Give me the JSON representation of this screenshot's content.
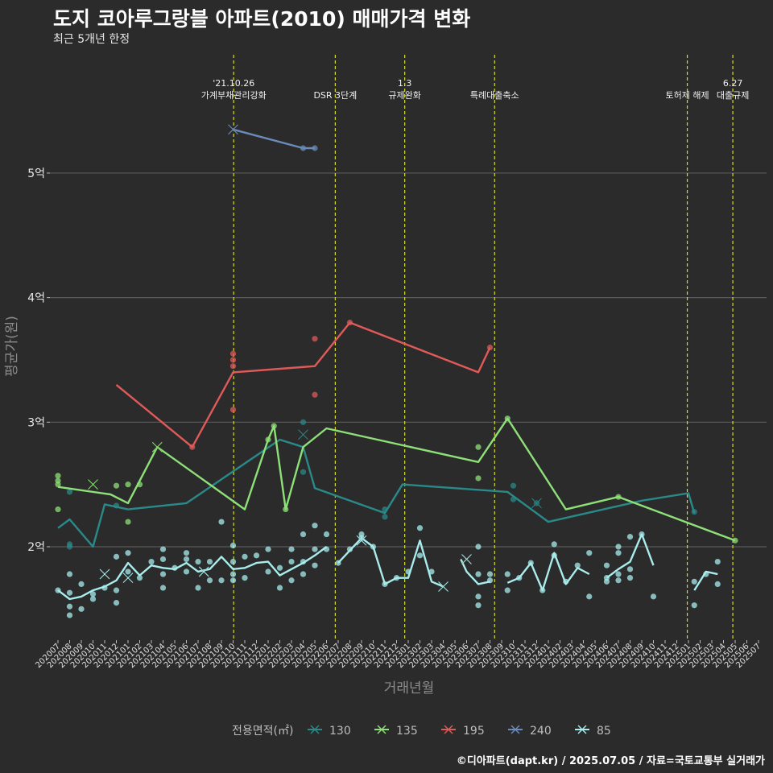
{
  "title": "도지 코아루그랑블 아파트(2010) 매매가격 변화",
  "subtitle": "최근 5개년 한정",
  "caption": "©디아파트(dapt.kr) / 2025.07.05 / 자료=국토교통부 실거래가",
  "chart_data": {
    "type": "line",
    "xlabel": "거래년월",
    "ylabel": "평균가(원)",
    "ylim": [
      1.25,
      5.95
    ],
    "y_ticks": [
      {
        "value": 2,
        "label": "2억"
      },
      {
        "value": 3,
        "label": "3억"
      },
      {
        "value": 4,
        "label": "4억"
      },
      {
        "value": 5,
        "label": "5억"
      }
    ],
    "x_labels": [
      "202007",
      "202008",
      "202009",
      "202010",
      "202011",
      "202012",
      "202101",
      "202102",
      "202103",
      "202104",
      "202105",
      "202106",
      "202107",
      "202108",
      "202109",
      "202110",
      "202111",
      "202112",
      "202201",
      "202202",
      "202203",
      "202204",
      "202205",
      "202206",
      "202207",
      "202208",
      "202209",
      "202210",
      "202211",
      "202212",
      "202301",
      "202302",
      "202303",
      "202304",
      "202305",
      "202306",
      "202307",
      "202308",
      "202309",
      "202310",
      "202311",
      "202312",
      "202401",
      "202402",
      "202403",
      "202404",
      "202405",
      "202406",
      "202407",
      "202408",
      "202409",
      "202410",
      "202411",
      "202412",
      "202501",
      "202502",
      "202503",
      "202504",
      "202505",
      "202506",
      "202507"
    ],
    "events": [
      {
        "x": 15.05,
        "lines": [
          "'21.10.26",
          "가계부채관리강화"
        ]
      },
      {
        "x": 23.75,
        "lines": [
          "DSR 3단계"
        ]
      },
      {
        "x": 29.7,
        "lines": [
          "1.3",
          "규제완화"
        ]
      },
      {
        "x": 37.4,
        "lines": [
          "특례대출축소"
        ]
      },
      {
        "x": 53.9,
        "lines": [
          "토허제 해제"
        ]
      },
      {
        "x": 57.8,
        "lines": [
          "6.27",
          "대출규제"
        ]
      }
    ],
    "legend_title": "전용면적(㎡)",
    "series": [
      {
        "name": "130",
        "color": "#2a8a8a",
        "points": [
          [
            0,
            2.15
          ],
          [
            1,
            2.22
          ],
          [
            3,
            2.0
          ],
          [
            4,
            2.34
          ],
          [
            6,
            2.3
          ],
          [
            11,
            2.35
          ],
          [
            19,
            2.86
          ],
          [
            21,
            2.8
          ],
          [
            22,
            2.47
          ],
          [
            28,
            2.27
          ],
          [
            29.5,
            2.5
          ],
          [
            38.5,
            2.44
          ],
          [
            42,
            2.2
          ],
          [
            50,
            2.37
          ],
          [
            54,
            2.43
          ],
          [
            54.5,
            2.27
          ]
        ],
        "dots": [
          [
            1,
            2.44
          ],
          [
            1,
            2.0
          ],
          [
            1,
            2.02
          ],
          [
            5,
            2.33
          ],
          [
            21,
            3.0
          ],
          [
            21,
            2.6
          ],
          [
            28,
            2.3
          ],
          [
            28,
            2.24
          ],
          [
            39,
            2.49
          ],
          [
            39,
            2.38
          ],
          [
            41,
            2.35
          ],
          [
            54.5,
            2.28
          ]
        ],
        "x_marks": [
          [
            21,
            2.9
          ],
          [
            41,
            2.35
          ]
        ]
      },
      {
        "name": "135",
        "color": "#8ee078",
        "points": [
          [
            0,
            2.48
          ],
          [
            4.5,
            2.42
          ],
          [
            6,
            2.35
          ],
          [
            8.5,
            2.8
          ],
          [
            16,
            2.3
          ],
          [
            18,
            2.86
          ],
          [
            18.5,
            2.97
          ],
          [
            19.5,
            2.3
          ],
          [
            21,
            2.8
          ],
          [
            23,
            2.95
          ],
          [
            36,
            2.68
          ],
          [
            38.5,
            3.03
          ],
          [
            43.5,
            2.3
          ],
          [
            48,
            2.4
          ],
          [
            58,
            2.05
          ]
        ],
        "dots": [
          [
            0,
            2.57
          ],
          [
            0,
            2.53
          ],
          [
            0,
            2.5
          ],
          [
            0,
            2.3
          ],
          [
            5,
            2.49
          ],
          [
            6,
            2.5
          ],
          [
            6,
            2.2
          ],
          [
            7,
            2.5
          ],
          [
            18,
            2.86
          ],
          [
            18.5,
            2.97
          ],
          [
            19.5,
            2.3
          ],
          [
            36,
            2.8
          ],
          [
            36,
            2.55
          ],
          [
            38.5,
            3.03
          ],
          [
            48,
            2.4
          ],
          [
            58,
            2.05
          ]
        ],
        "x_marks": [
          [
            3,
            2.5
          ],
          [
            8.5,
            2.8
          ]
        ]
      },
      {
        "name": "195",
        "color": "#e05a5a",
        "points": [
          [
            5,
            3.3
          ],
          [
            11.5,
            2.8
          ],
          [
            15,
            3.4
          ],
          [
            22,
            3.45
          ],
          [
            25,
            3.8
          ],
          [
            36,
            3.4
          ],
          [
            37,
            3.6
          ]
        ],
        "dots": [
          [
            15,
            3.55
          ],
          [
            15,
            3.5
          ],
          [
            15,
            3.45
          ],
          [
            15,
            3.1
          ],
          [
            22,
            3.67
          ],
          [
            22,
            3.22
          ],
          [
            25,
            3.8
          ],
          [
            37,
            3.6
          ],
          [
            11.5,
            2.8
          ]
        ],
        "x_marks": []
      },
      {
        "name": "240",
        "color": "#6b8cba",
        "points": [
          [
            15,
            5.35
          ],
          [
            21,
            5.2
          ],
          [
            22,
            5.2
          ]
        ],
        "dots": [
          [
            21,
            5.2
          ],
          [
            22,
            5.2
          ]
        ],
        "x_marks": [
          [
            15,
            5.35
          ]
        ]
      },
      {
        "name": "85",
        "color": "#a8ecec",
        "points": [
          [
            0,
            1.65
          ],
          [
            1,
            1.58
          ],
          [
            2,
            1.6
          ],
          [
            3,
            1.65
          ],
          [
            4,
            1.68
          ],
          [
            5,
            1.73
          ],
          [
            6,
            1.87
          ],
          [
            7,
            1.77
          ],
          [
            8,
            1.85
          ],
          [
            9,
            1.83
          ],
          [
            10,
            1.82
          ],
          [
            11,
            1.87
          ],
          [
            12,
            1.8
          ],
          [
            13,
            1.82
          ],
          [
            14,
            1.92
          ],
          [
            15,
            1.82
          ],
          [
            16,
            1.83
          ],
          [
            17,
            1.87
          ],
          [
            18,
            1.88
          ],
          [
            19,
            1.77
          ],
          [
            20,
            1.82
          ],
          [
            21,
            1.87
          ],
          [
            22,
            1.93
          ],
          [
            23,
            2.0
          ],
          [
            null,
            null
          ],
          [
            24,
            1.87
          ],
          [
            25,
            1.97
          ],
          [
            26,
            2.07
          ],
          [
            27,
            2.0
          ],
          [
            28,
            1.7
          ],
          [
            29,
            1.75
          ],
          [
            30,
            1.75
          ],
          [
            31,
            2.05
          ],
          [
            32,
            1.72
          ],
          [
            33,
            1.68
          ],
          [
            null,
            null
          ],
          [
            34.5,
            1.9
          ],
          [
            35,
            1.8
          ],
          [
            36,
            1.7
          ],
          [
            37,
            1.72
          ],
          [
            null,
            null
          ],
          [
            38.5,
            1.71
          ],
          [
            39.5,
            1.75
          ],
          [
            40.5,
            1.87
          ],
          [
            41.5,
            1.65
          ],
          [
            42.5,
            1.95
          ],
          [
            43.5,
            1.7
          ],
          [
            44.5,
            1.83
          ],
          [
            45.5,
            1.78
          ],
          [
            null,
            null
          ],
          [
            47,
            1.75
          ],
          [
            48,
            1.82
          ],
          [
            49,
            1.88
          ],
          [
            50,
            2.1
          ],
          [
            51,
            1.85
          ],
          [
            null,
            null
          ],
          [
            54.5,
            1.65
          ],
          [
            55.5,
            1.8
          ],
          [
            56.5,
            1.78
          ]
        ],
        "dots": [
          [
            0,
            1.65
          ],
          [
            1,
            1.52
          ],
          [
            1,
            1.45
          ],
          [
            1,
            1.78
          ],
          [
            1,
            1.63
          ],
          [
            2,
            1.7
          ],
          [
            2,
            1.5
          ],
          [
            3,
            1.62
          ],
          [
            3,
            1.58
          ],
          [
            4,
            1.67
          ],
          [
            5,
            1.92
          ],
          [
            5,
            1.65
          ],
          [
            5,
            1.55
          ],
          [
            6,
            1.95
          ],
          [
            6,
            1.8
          ],
          [
            7,
            1.75
          ],
          [
            8,
            1.88
          ],
          [
            9,
            1.98
          ],
          [
            9,
            1.9
          ],
          [
            9,
            1.78
          ],
          [
            9,
            1.67
          ],
          [
            10,
            1.83
          ],
          [
            11,
            1.95
          ],
          [
            11,
            1.9
          ],
          [
            11,
            1.8
          ],
          [
            12,
            1.88
          ],
          [
            12,
            1.67
          ],
          [
            13,
            1.88
          ],
          [
            13,
            1.73
          ],
          [
            14,
            2.2
          ],
          [
            14,
            1.73
          ],
          [
            15,
            2.01
          ],
          [
            15,
            1.88
          ],
          [
            15,
            1.78
          ],
          [
            15,
            1.73
          ],
          [
            16,
            1.92
          ],
          [
            16,
            1.75
          ],
          [
            17,
            1.93
          ],
          [
            18,
            1.98
          ],
          [
            18,
            1.8
          ],
          [
            19,
            1.83
          ],
          [
            19,
            1.67
          ],
          [
            20,
            1.98
          ],
          [
            20,
            1.88
          ],
          [
            20,
            1.73
          ],
          [
            21,
            2.1
          ],
          [
            21,
            1.88
          ],
          [
            21,
            1.78
          ],
          [
            22,
            2.17
          ],
          [
            22,
            1.98
          ],
          [
            22,
            1.85
          ],
          [
            23,
            2.1
          ],
          [
            23,
            1.98
          ],
          [
            24,
            1.87
          ],
          [
            25,
            1.98
          ],
          [
            26,
            2.1
          ],
          [
            26,
            2.07
          ],
          [
            27,
            2.0
          ],
          [
            28,
            1.7
          ],
          [
            29,
            1.75
          ],
          [
            30,
            1.8
          ],
          [
            31,
            2.15
          ],
          [
            31,
            1.93
          ],
          [
            32,
            1.8
          ],
          [
            36,
            2.0
          ],
          [
            36,
            1.78
          ],
          [
            36,
            1.6
          ],
          [
            36,
            1.53
          ],
          [
            37,
            1.78
          ],
          [
            37,
            1.73
          ],
          [
            38.5,
            1.78
          ],
          [
            38.5,
            1.65
          ],
          [
            39.5,
            1.75
          ],
          [
            40.5,
            1.87
          ],
          [
            41.5,
            1.65
          ],
          [
            42.5,
            2.02
          ],
          [
            42.5,
            1.93
          ],
          [
            43.5,
            1.72
          ],
          [
            44.5,
            1.85
          ],
          [
            45.5,
            1.95
          ],
          [
            45.5,
            1.6
          ],
          [
            47,
            1.85
          ],
          [
            47,
            1.75
          ],
          [
            47,
            1.72
          ],
          [
            48,
            2.0
          ],
          [
            48,
            1.95
          ],
          [
            48,
            1.78
          ],
          [
            48,
            1.73
          ],
          [
            49,
            2.08
          ],
          [
            49,
            1.82
          ],
          [
            49,
            1.75
          ],
          [
            50,
            2.1
          ],
          [
            51,
            1.6
          ],
          [
            54.5,
            1.72
          ],
          [
            54.5,
            1.53
          ],
          [
            55.5,
            1.78
          ],
          [
            56.5,
            1.88
          ],
          [
            56.5,
            1.7
          ]
        ],
        "x_marks": [
          [
            4,
            1.78
          ],
          [
            6,
            1.75
          ],
          [
            12.5,
            1.8
          ],
          [
            26,
            2.05
          ],
          [
            33,
            1.68
          ],
          [
            35,
            1.9
          ]
        ]
      }
    ]
  }
}
